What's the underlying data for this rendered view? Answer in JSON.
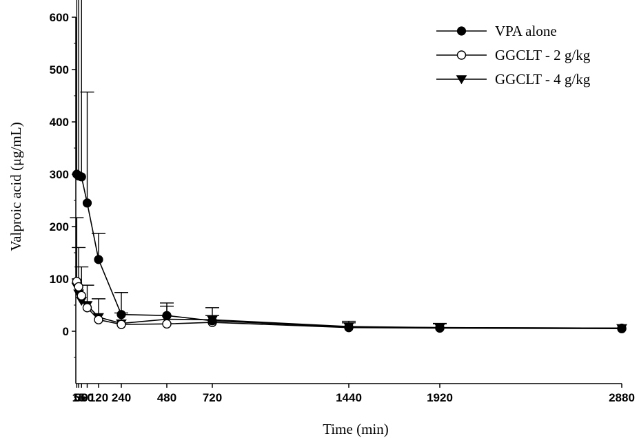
{
  "chart_data": {
    "type": "line",
    "title": "",
    "xlabel": "Time (min)",
    "ylabel": "Valproic acid (μg/mL)",
    "xlim": [
      0,
      2880
    ],
    "ylim": [
      -100,
      600
    ],
    "x_ticks": [
      5,
      15,
      30,
      60,
      120,
      240,
      480,
      720,
      1440,
      1920,
      2880
    ],
    "x_tick_labels": [
      "5",
      "15",
      "30",
      "60",
      "120",
      "240",
      "480",
      "720",
      "1440",
      "1920",
      "2880"
    ],
    "y_ticks": [
      0,
      100,
      200,
      300,
      400,
      500,
      600
    ],
    "y_tick_labels": [
      "0",
      "100",
      "200",
      "300",
      "400",
      "500",
      "600"
    ],
    "legend_position": "top-right",
    "grid": false,
    "series": [
      {
        "name": "VPA alone",
        "marker": "filled-circle",
        "x": [
          5,
          15,
          30,
          60,
          120,
          240,
          480,
          720,
          1440,
          1920,
          2880
        ],
        "y": [
          300,
          297,
          295,
          245,
          137,
          32,
          30,
          20,
          8,
          7,
          6
        ],
        "error_upper": [
          525,
          472,
          388,
          212,
          50,
          42,
          24,
          10,
          8,
          7,
          null
        ]
      },
      {
        "name": "GGCLT - 2 g/kg",
        "marker": "open-circle",
        "x": [
          5,
          15,
          30,
          60,
          120,
          240,
          480,
          720,
          1440,
          1920,
          2880
        ],
        "y": [
          95,
          85,
          68,
          45,
          22,
          13,
          14,
          17,
          7,
          6,
          5
        ],
        "error_upper": [
          null,
          null,
          null,
          null,
          null,
          null,
          null,
          null,
          null,
          null,
          null
        ]
      },
      {
        "name": "GGCLT - 4 g/kg",
        "marker": "filled-triangle-down",
        "x": [
          5,
          15,
          30,
          60,
          120,
          240,
          480,
          720,
          1440,
          1920,
          2880
        ],
        "y": [
          85,
          72,
          58,
          50,
          27,
          15,
          23,
          22,
          9,
          7,
          6
        ],
        "error_upper": [
          132,
          88,
          65,
          38,
          35,
          20,
          25,
          23,
          10,
          8,
          null
        ]
      }
    ]
  }
}
